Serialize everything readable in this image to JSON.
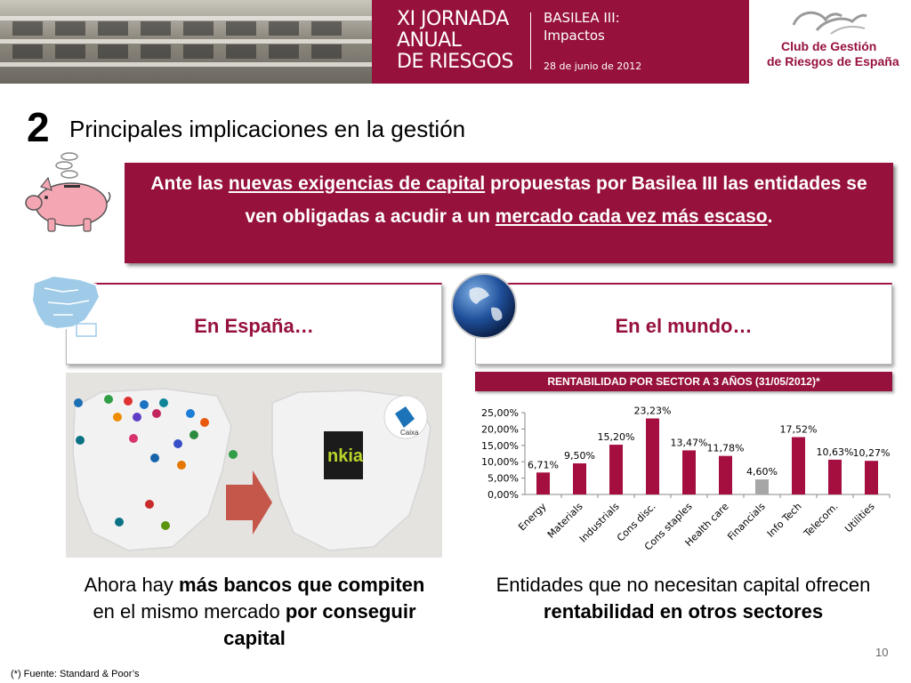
{
  "header": {
    "title_lines": [
      "XI JORNADA",
      "ANUAL",
      "DE RIESGOS"
    ],
    "subtitle_lines": [
      "BASILEA III:",
      "Impactos"
    ],
    "date": "28 de junio de 2012",
    "logo_lines": [
      "Club de Gestión",
      "de Riesgos de España"
    ],
    "colors": {
      "brand": "#96113c"
    }
  },
  "section": {
    "number": "2",
    "title": "Principales implicaciones en la gestión"
  },
  "banner": {
    "t1": "Ante las ",
    "u1": "nuevas exigencias de capital",
    "t2": " propuestas por Basilea III las entidades se ven obligadas a acudir a un ",
    "u2": "mercado cada vez más escaso",
    "t3": "."
  },
  "panels": {
    "spain": "En España…",
    "world": "En el mundo…"
  },
  "maps": {
    "bank_label": "nkia",
    "bank_logo": "Caixa"
  },
  "chart_header": "RENTABILIDAD POR SECTOR A 3 AÑOS (31/05/2012)*",
  "chart_data": {
    "type": "bar",
    "title": "RENTABILIDAD POR SECTOR A 3 AÑOS (31/05/2012)*",
    "categories": [
      "Energy",
      "Materials",
      "Industrials",
      "Cons disc.",
      "Cons staples",
      "Health care",
      "Financials",
      "Info Tech",
      "Telecom.",
      "Utilities"
    ],
    "values": [
      6.71,
      9.5,
      15.2,
      23.23,
      13.47,
      11.78,
      4.6,
      17.52,
      10.63,
      10.27
    ],
    "data_labels": [
      "6,71%",
      "9,50%",
      "15,20%",
      "23,23%",
      "13,47%",
      "11,78%",
      "4,60%",
      "17,52%",
      "10,63%",
      "10,27%"
    ],
    "ylim": [
      0,
      25
    ],
    "yticks": [
      "0,00%",
      "5,00%",
      "10,00%",
      "15,00%",
      "20,00%",
      "25,00%"
    ],
    "grid": false,
    "colors": {
      "bar": "#a50f3f",
      "highlight": "#a6a6a6"
    },
    "highlight_category": "Financials"
  },
  "captions": {
    "left_a": "Ahora hay ",
    "left_b": "más bancos que compiten",
    "left_c": " en el mismo mercado ",
    "left_d": "por conseguir capital",
    "right_a": "Entidades que no necesitan capital ofrecen ",
    "right_b": "rentabilidad en otros sectores"
  },
  "page_number": "10",
  "footnote": "(*) Fuente: Standard & Poor’s"
}
